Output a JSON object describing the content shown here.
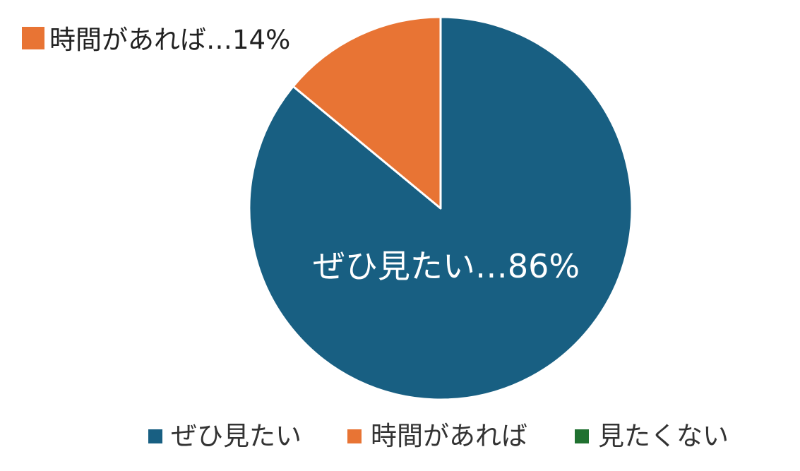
{
  "chart_data": {
    "type": "pie",
    "title": "",
    "start_angle_deg": 0,
    "direction": "clockwise",
    "slices": [
      {
        "label": "ぜひ見たい",
        "value": 86,
        "color": "#185f82",
        "data_label": "ぜひ見たい…86%"
      },
      {
        "label": "時間があれば",
        "value": 14,
        "color": "#e87434",
        "data_label": "時間があれば…14%"
      },
      {
        "label": "見たくない",
        "value": 0,
        "color": "#207130",
        "data_label": ""
      }
    ],
    "legend": {
      "position": "bottom",
      "items": [
        "ぜひ見たい",
        "時間があれば",
        "見たくない"
      ]
    }
  }
}
